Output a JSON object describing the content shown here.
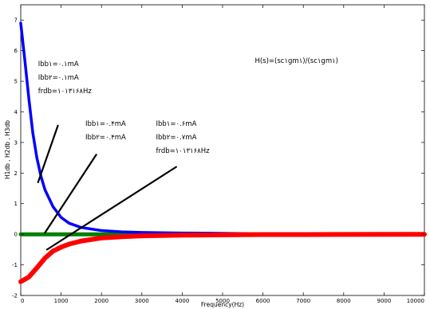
{
  "chart_data": {
    "type": "line",
    "title": "",
    "xlabel": "Frequency(Hz)",
    "ylabel": "H1db , H2db , H3db",
    "xlim": [
      0,
      10000
    ],
    "ylim": [
      -2,
      7.5
    ],
    "xticks": [
      0,
      1000,
      2000,
      3000,
      4000,
      5000,
      6000,
      7000,
      8000,
      9000,
      10000
    ],
    "xtick_labels": [
      "0",
      "1000",
      "2000",
      "3000",
      "4000",
      "5000",
      "6000",
      "7000",
      "8000",
      "9000",
      "10000"
    ],
    "yticks": [
      -2,
      -1,
      0,
      1,
      2,
      3,
      4,
      5,
      6,
      7
    ],
    "ytick_labels": [
      "-2",
      "-1",
      "0",
      "1",
      "2",
      "3",
      "4",
      "5",
      "6",
      "7"
    ],
    "grid": false,
    "series": [
      {
        "color": "#0000ff",
        "x": [
          0,
          100,
          200,
          300,
          400,
          500,
          600,
          800,
          1000,
          1200,
          1500,
          2000,
          2500,
          3000,
          4000,
          5000,
          5600
        ],
        "y": [
          6.9,
          5.7,
          4.45,
          3.3,
          2.5,
          1.9,
          1.45,
          0.9,
          0.55,
          0.36,
          0.22,
          0.12,
          0.08,
          0.06,
          0.04,
          0.03,
          0.02
        ]
      },
      {
        "color": "#008000",
        "x": [
          0,
          10000
        ],
        "y": [
          0,
          0
        ]
      },
      {
        "color": "#ff0000",
        "x": [
          0,
          200,
          400,
          600,
          800,
          1000,
          1200,
          1500,
          2000,
          2500,
          3000,
          4000,
          5000,
          6000,
          8000,
          10000
        ],
        "y": [
          -1.55,
          -1.4,
          -1.1,
          -0.78,
          -0.55,
          -0.42,
          -0.32,
          -0.22,
          -0.12,
          -0.08,
          -0.05,
          -0.03,
          -0.02,
          -0.01,
          -0.005,
          0
        ]
      }
    ],
    "annotations": [
      {
        "lines": [
          "Ibb۱=۰.۱mA",
          "Ibb۲=۰.۱mA",
          "frdb=۱۰۱۳۱۶۸Hz"
        ],
        "text_at": [
          430,
          5.5
        ],
        "arrow_from": [
          920,
          3.55
        ],
        "arrow_to": [
          430,
          1.7
        ]
      },
      {
        "lines": [
          "Ibb۱=۰.۴mA",
          "Ibb۲=۰.۴mA"
        ],
        "text_at": [
          1600,
          3.55
        ],
        "arrow_from": [
          1870,
          2.6
        ],
        "arrow_to": [
          600,
          0.05
        ]
      },
      {
        "lines": [
          "Ibb۱=۰.۶mA",
          "Ibb۲=۰.۷mA",
          "frdb=۱۰۱۳۱۶۸Hz"
        ],
        "text_at": [
          3350,
          3.55
        ],
        "arrow_from": [
          3850,
          2.2
        ],
        "arrow_to": [
          650,
          -0.5
        ]
      },
      {
        "lines": [
          "H(s)=(sc۱gm۱)/(sc۱gm۱)"
        ],
        "text_at": [
          5800,
          5.6
        ]
      }
    ]
  }
}
